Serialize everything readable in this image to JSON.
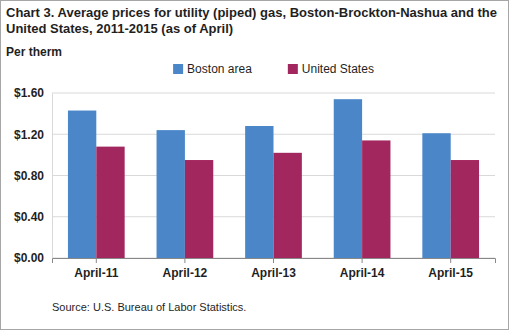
{
  "chart_data": {
    "type": "bar",
    "title": "Chart 3. Average prices for utility (piped) gas, Boston-Brockton-Nashua and the United States, 2011-2015 (as of April)",
    "y_label": "Per therm",
    "source": "Source: U.S. Bureau of Labor Statistics.",
    "categories": [
      "April-11",
      "April-12",
      "April-13",
      "April-14",
      "April-15"
    ],
    "series": [
      {
        "name": "Boston area",
        "color": "#4a86c8",
        "values": [
          1.43,
          1.24,
          1.28,
          1.54,
          1.21
        ]
      },
      {
        "name": "United States",
        "color": "#a3275f",
        "values": [
          1.08,
          0.95,
          1.02,
          1.14,
          0.95
        ]
      }
    ],
    "ylim": [
      0,
      1.6
    ],
    "yticks": [
      {
        "value": 0,
        "label": "$0.00"
      },
      {
        "value": 0.4,
        "label": "$0.40"
      },
      {
        "value": 0.8,
        "label": "$0.80"
      },
      {
        "value": 1.2,
        "label": "$1.20"
      },
      {
        "value": 1.6,
        "label": "$1.60"
      }
    ],
    "grid": true,
    "legend": "top"
  }
}
